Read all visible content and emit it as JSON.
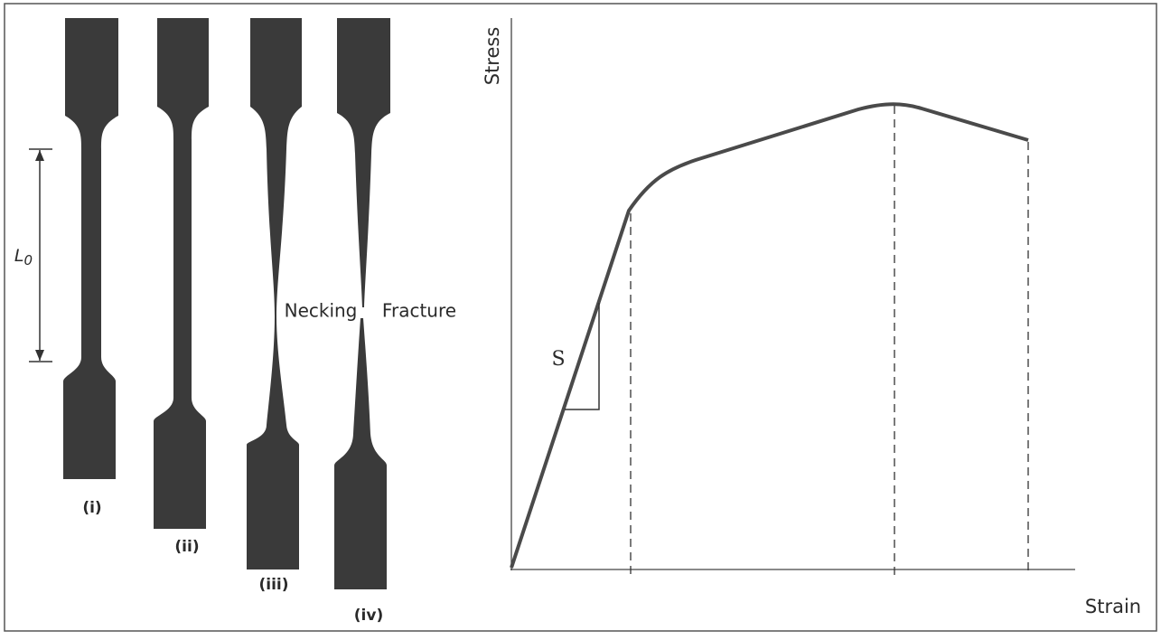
{
  "specimens": [
    {
      "label": "(i)"
    },
    {
      "label": "(ii)"
    },
    {
      "label": "(iii)"
    },
    {
      "label": "(iv)"
    }
  ],
  "gauge_length": {
    "label": "L",
    "subscript": "0"
  },
  "annotations": {
    "necking": "Necking",
    "fracture": "Fracture"
  },
  "graph": {
    "y_label": "Stress",
    "x_label": "Strain",
    "slope_label": "S"
  }
}
